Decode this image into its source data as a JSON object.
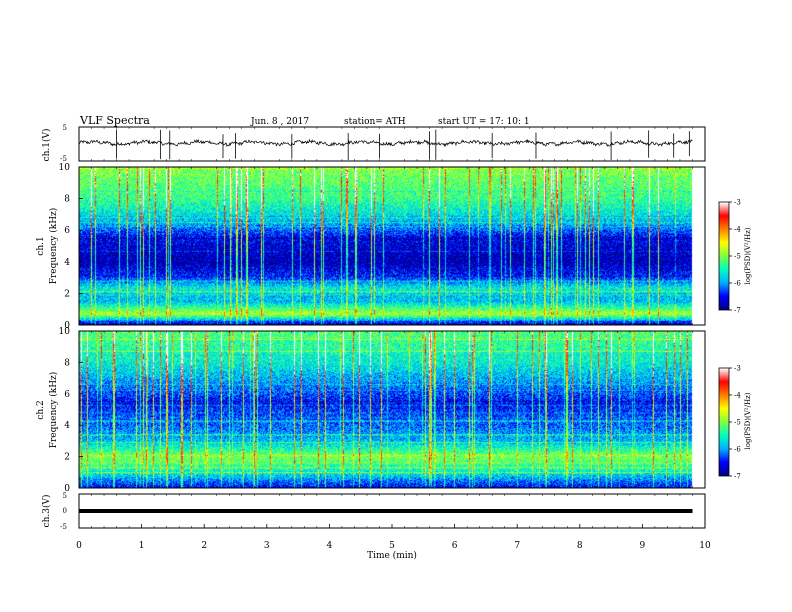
{
  "header": {
    "title": "VLF  Spectra",
    "date": "Jun. 8  , 2017",
    "station": "station= ATH",
    "start": "start  UT  =    17: 10: 1"
  },
  "colors": {
    "background": "#ffffff",
    "trace": "#000000",
    "colormap": [
      "#000080",
      "#0000ff",
      "#00b0ff",
      "#00ffc0",
      "#80ff40",
      "#ffff00",
      "#ff8000",
      "#ff0000",
      "#ffffff"
    ]
  },
  "chart_data": [
    {
      "type": "line",
      "panel": "ch1-voltage",
      "ylabel": "ch.1(V)",
      "yticks": [
        "5",
        "-5"
      ],
      "ylim": [
        -5,
        5
      ],
      "xlim": [
        0,
        10
      ],
      "signal_mean": 0.3,
      "spike_times_min": [
        0.6,
        1.3,
        1.45,
        2.3,
        2.5,
        3.4,
        4.3,
        4.8,
        5.6,
        5.7,
        6.6,
        7.3,
        8.5,
        9.1,
        9.5,
        9.75
      ],
      "data_end_min": 9.8
    },
    {
      "type": "heatmap",
      "panel": "ch1-spectrogram",
      "ylabel": "ch.1",
      "ylabel2": "Frequency  (kHz)",
      "yticks": [
        "10",
        "8",
        "6",
        "4",
        "2",
        "0"
      ],
      "ylim": [
        0,
        10
      ],
      "xlim": [
        0,
        10
      ],
      "data_end_min": 9.8,
      "colorbar": {
        "label": "log(PSD)(V²/Hz)",
        "ticks": [
          "-3",
          "-4",
          "-5",
          "-6",
          "-7"
        ],
        "range": [
          -7,
          -3
        ]
      },
      "level_profile": [
        {
          "f_khz": 10.0,
          "level": -5.0
        },
        {
          "f_khz": 8.0,
          "level": -5.3
        },
        {
          "f_khz": 6.5,
          "level": -5.9
        },
        {
          "f_khz": 5.5,
          "level": -6.6
        },
        {
          "f_khz": 4.0,
          "level": -6.8
        },
        {
          "f_khz": 3.0,
          "level": -6.4
        },
        {
          "f_khz": 2.3,
          "level": -5.6
        },
        {
          "f_khz": 1.5,
          "level": -5.9
        },
        {
          "f_khz": 0.7,
          "level": -4.8
        },
        {
          "f_khz": 0.0,
          "level": -6.9
        }
      ]
    },
    {
      "type": "heatmap",
      "panel": "ch2-spectrogram",
      "ylabel": "ch.2",
      "ylabel2": "Frequency  (kHz)",
      "yticks": [
        "10",
        "8",
        "6",
        "4",
        "2",
        "0"
      ],
      "ylim": [
        0,
        10
      ],
      "xlim": [
        0,
        10
      ],
      "data_end_min": 9.8,
      "colorbar": {
        "label": "log(PSD)(V²/Hz)",
        "ticks": [
          "-3",
          "-4",
          "-5",
          "-6",
          "-7"
        ],
        "range": [
          -7,
          -3
        ]
      },
      "level_profile": [
        {
          "f_khz": 10.0,
          "level": -5.2
        },
        {
          "f_khz": 8.0,
          "level": -5.6
        },
        {
          "f_khz": 6.5,
          "level": -6.1
        },
        {
          "f_khz": 5.5,
          "level": -6.5
        },
        {
          "f_khz": 4.0,
          "level": -6.2
        },
        {
          "f_khz": 3.0,
          "level": -5.9
        },
        {
          "f_khz": 2.0,
          "level": -5.0
        },
        {
          "f_khz": 1.0,
          "level": -5.6
        },
        {
          "f_khz": 0.0,
          "level": -6.6
        }
      ]
    },
    {
      "type": "line",
      "panel": "ch3-voltage",
      "ylabel": "ch.3(V)",
      "yticks": [
        "5",
        "0",
        "-5"
      ],
      "ylim": [
        -5,
        5
      ],
      "xlim": [
        0,
        10
      ],
      "signal_mean": 0.0,
      "data_end_min": 9.8,
      "xlabel": "Time  (min)",
      "xticks": [
        "0",
        "1",
        "2",
        "3",
        "4",
        "5",
        "6",
        "7",
        "8",
        "9",
        "10"
      ]
    }
  ]
}
